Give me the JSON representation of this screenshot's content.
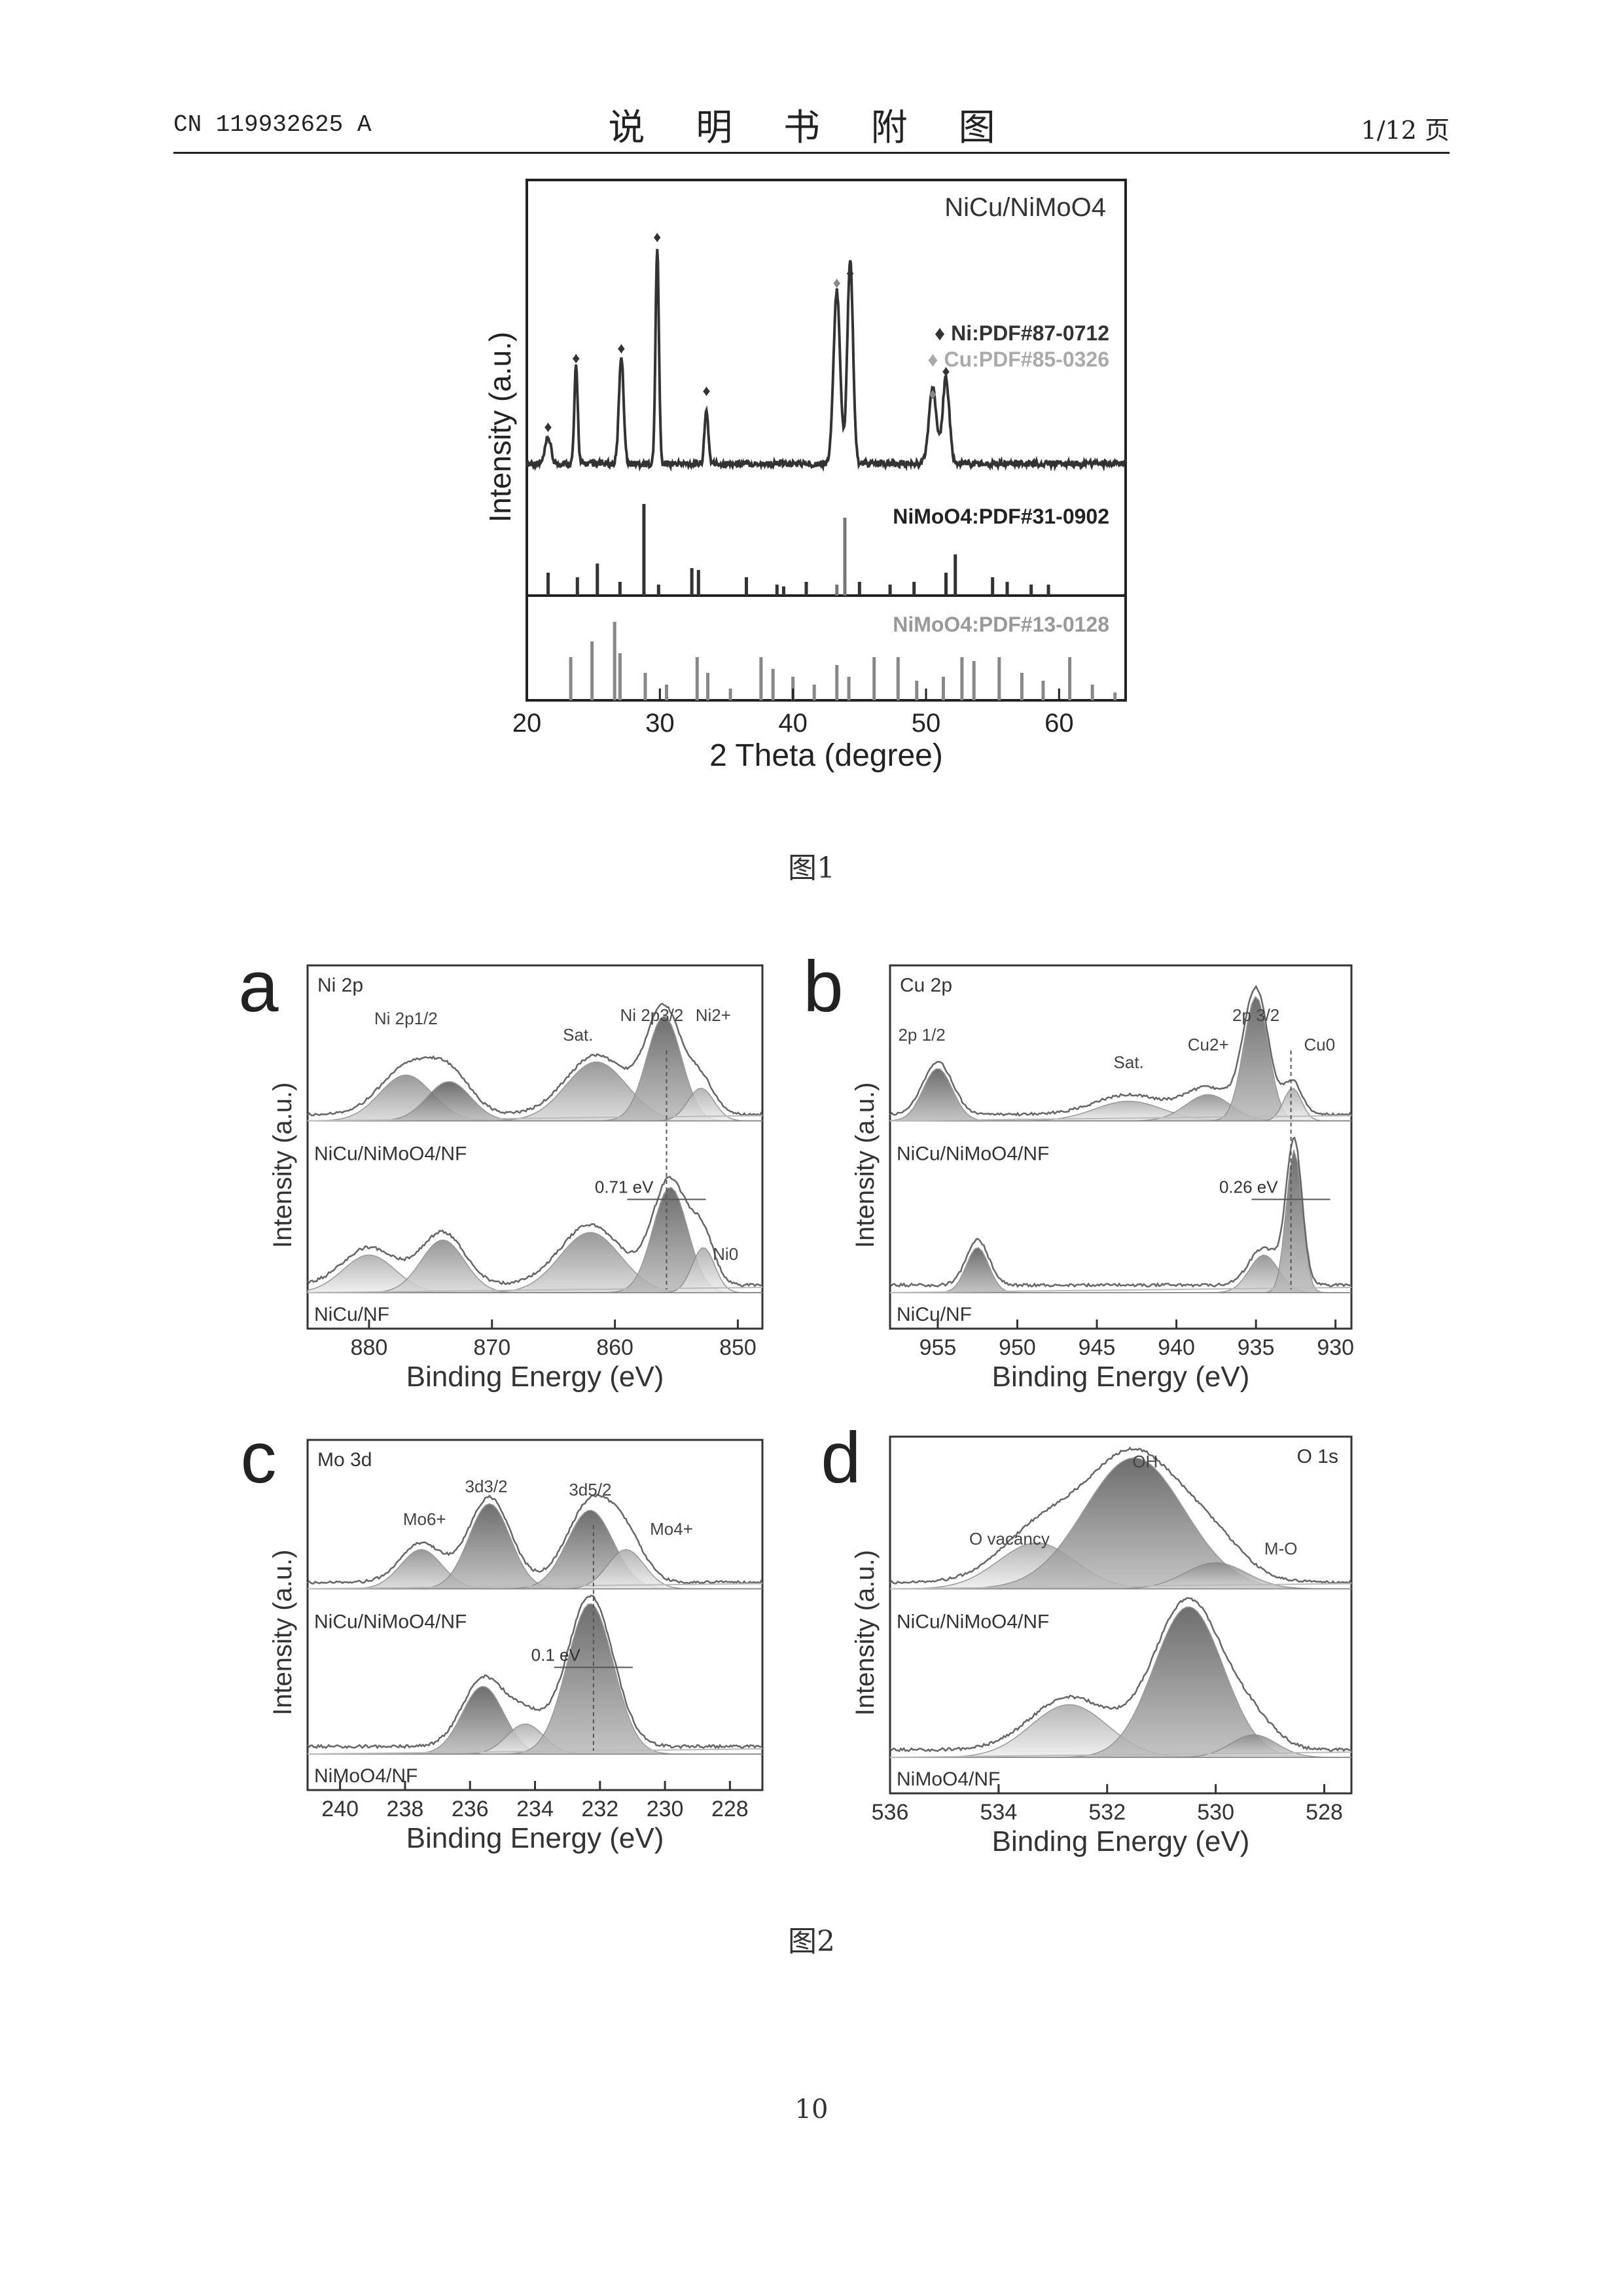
{
  "header": {
    "doc_id": "CN 119932625 A",
    "title": "说 明 书 附 图",
    "page_info": "1/12 页"
  },
  "captions": {
    "fig1": "图1",
    "fig2": "图2"
  },
  "page_number": "10",
  "chart_data": [
    {
      "type": "line",
      "panel": "fig1-xrd",
      "sample": "NiCu/NiMoO4",
      "xlabel": "2 Theta (degree)",
      "ylabel": "Intensity (a.u.)",
      "xlim": [
        20,
        65
      ],
      "x_ticks": [
        "20",
        "30",
        "40",
        "50",
        "60"
      ],
      "legend": [
        "♦ Ni:PDF#87-0712",
        "♦ Cu:PDF#85-0326"
      ],
      "references": [
        {
          "name": "NiMoO4:PDF#31-0902",
          "lines": [
            {
              "x": 21.6,
              "h": 0.25
            },
            {
              "x": 23.8,
              "h": 0.2
            },
            {
              "x": 25.3,
              "h": 0.35
            },
            {
              "x": 27.0,
              "h": 0.15
            },
            {
              "x": 28.8,
              "h": 1.0
            },
            {
              "x": 29.9,
              "h": 0.12
            },
            {
              "x": 32.4,
              "h": 0.3
            },
            {
              "x": 32.9,
              "h": 0.28
            },
            {
              "x": 36.5,
              "h": 0.2
            },
            {
              "x": 38.8,
              "h": 0.12
            },
            {
              "x": 39.3,
              "h": 0.1
            },
            {
              "x": 41.0,
              "h": 0.15
            },
            {
              "x": 43.3,
              "h": 0.12
            },
            {
              "x": 43.9,
              "h": 0.85
            },
            {
              "x": 45.0,
              "h": 0.15
            },
            {
              "x": 47.3,
              "h": 0.12
            },
            {
              "x": 49.1,
              "h": 0.15
            },
            {
              "x": 51.5,
              "h": 0.25
            },
            {
              "x": 52.2,
              "h": 0.45
            },
            {
              "x": 55.0,
              "h": 0.2
            },
            {
              "x": 56.1,
              "h": 0.15
            },
            {
              "x": 57.9,
              "h": 0.12
            },
            {
              "x": 59.2,
              "h": 0.12
            }
          ]
        },
        {
          "name": "NiMoO4:PDF#13-0128",
          "lines": [
            {
              "x": 23.3,
              "h": 0.55
            },
            {
              "x": 24.9,
              "h": 0.75
            },
            {
              "x": 26.6,
              "h": 1.0
            },
            {
              "x": 27.0,
              "h": 0.6
            },
            {
              "x": 28.9,
              "h": 0.35
            },
            {
              "x": 30.5,
              "h": 0.2
            },
            {
              "x": 32.8,
              "h": 0.55
            },
            {
              "x": 33.6,
              "h": 0.35
            },
            {
              "x": 35.3,
              "h": 0.15
            },
            {
              "x": 37.6,
              "h": 0.55
            },
            {
              "x": 38.5,
              "h": 0.4
            },
            {
              "x": 40.0,
              "h": 0.3
            },
            {
              "x": 41.6,
              "h": 0.2
            },
            {
              "x": 43.3,
              "h": 0.45
            },
            {
              "x": 44.2,
              "h": 0.3
            },
            {
              "x": 46.1,
              "h": 0.55
            },
            {
              "x": 47.9,
              "h": 0.55
            },
            {
              "x": 49.3,
              "h": 0.25
            },
            {
              "x": 51.3,
              "h": 0.3
            },
            {
              "x": 52.7,
              "h": 0.55
            },
            {
              "x": 53.6,
              "h": 0.5
            },
            {
              "x": 55.5,
              "h": 0.55
            },
            {
              "x": 57.2,
              "h": 0.35
            },
            {
              "x": 58.8,
              "h": 0.25
            },
            {
              "x": 60.8,
              "h": 0.55
            },
            {
              "x": 62.5,
              "h": 0.2
            },
            {
              "x": 64.2,
              "h": 0.1
            }
          ]
        }
      ]
    },
    {
      "type": "line",
      "panel": "a",
      "title": "Ni 2p",
      "xlabel": "Binding Energy (eV)",
      "ylabel": "Intensity (a.u.)",
      "xlim": [
        885,
        848
      ],
      "x_ticks": [
        "880",
        "870",
        "860",
        "850"
      ],
      "series_labels": [
        "NiCu/NiMoO4/NF",
        "NiCu/NF"
      ],
      "shift_label": "0.71 eV",
      "annotations": [
        "Ni 2p1/2",
        "Sat.",
        "Ni 2p3/2",
        "Ni2+",
        "Ni0"
      ]
    },
    {
      "type": "line",
      "panel": "b",
      "title": "Cu 2p",
      "xlabel": "Binding Energy (eV)",
      "ylabel": "Intensity (a.u.)",
      "xlim": [
        958,
        929
      ],
      "x_ticks": [
        "955",
        "950",
        "945",
        "940",
        "935",
        "930"
      ],
      "series_labels": [
        "NiCu/NiMoO4/NF",
        "NiCu/NF"
      ],
      "shift_label": "0.26 eV",
      "annotations": [
        "2p 1/2",
        "Sat.",
        "Cu2+",
        "2p 3/2",
        "Cu0"
      ]
    },
    {
      "type": "line",
      "panel": "c",
      "title": "Mo 3d",
      "xlabel": "Binding Energy (eV)",
      "ylabel": "Intensity (a.u.)",
      "xlim": [
        241,
        227
      ],
      "x_ticks": [
        "240",
        "238",
        "236",
        "234",
        "232",
        "230",
        "228"
      ],
      "series_labels": [
        "NiCu/NiMoO4/NF",
        "NiMoO4/NF"
      ],
      "shift_label": "0.1 eV",
      "annotations": [
        "Mo6+",
        "3d3/2",
        "3d5/2",
        "Mo4+"
      ]
    },
    {
      "type": "line",
      "panel": "d",
      "title": "O 1s",
      "xlabel": "Binding Energy (eV)",
      "ylabel": "Intensity (a.u.)",
      "xlim": [
        536,
        527.5
      ],
      "x_ticks": [
        "536",
        "534",
        "532",
        "530",
        "528"
      ],
      "series_labels": [
        "NiCu/NiMoO4/NF",
        "NiMoO4/NF"
      ],
      "annotations": [
        "O vacancy",
        "OH",
        "M-O"
      ]
    }
  ]
}
